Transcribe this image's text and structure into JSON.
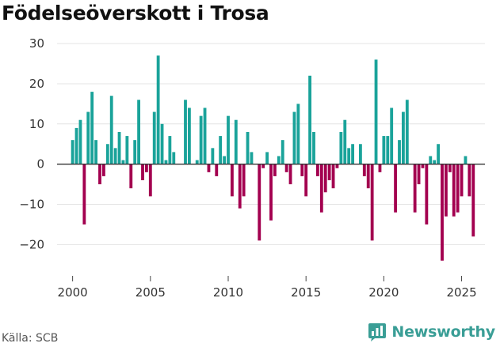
{
  "chart_data": {
    "type": "bar",
    "title": "Födelseöverskott i Trosa",
    "xlabel": "",
    "ylabel": "",
    "xlim": [
      1999,
      2026.5
    ],
    "ylim": [
      -27,
      31
    ],
    "yticks": [
      30,
      20,
      10,
      0,
      -10,
      -20
    ],
    "ytick_labels": [
      "30",
      "20",
      "10",
      "0",
      "−10",
      "−20"
    ],
    "xticks": [
      2000,
      2005,
      2010,
      2015,
      2020,
      2025
    ],
    "xtick_labels": [
      "2000",
      "2005",
      "2010",
      "2015",
      "2020",
      "2025"
    ],
    "grid": true,
    "positive_color": "#1aa39a",
    "negative_color": "#a3004f",
    "series": [
      {
        "name": "Födelseöverskott",
        "x": [
          2000.0,
          2000.25,
          2000.5,
          2000.75,
          2001.0,
          2001.25,
          2001.5,
          2001.75,
          2002.0,
          2002.25,
          2002.5,
          2002.75,
          2003.0,
          2003.25,
          2003.5,
          2003.75,
          2004.0,
          2004.25,
          2004.5,
          2004.75,
          2005.0,
          2005.25,
          2005.5,
          2005.75,
          2006.0,
          2006.25,
          2006.5,
          2006.75,
          2007.0,
          2007.25,
          2007.5,
          2007.75,
          2008.0,
          2008.25,
          2008.5,
          2008.75,
          2009.0,
          2009.25,
          2009.5,
          2009.75,
          2010.0,
          2010.25,
          2010.5,
          2010.75,
          2011.0,
          2011.25,
          2011.5,
          2011.75,
          2012.0,
          2012.25,
          2012.5,
          2012.75,
          2013.0,
          2013.25,
          2013.5,
          2013.75,
          2014.0,
          2014.25,
          2014.5,
          2014.75,
          2015.0,
          2015.25,
          2015.5,
          2015.75,
          2016.0,
          2016.25,
          2016.5,
          2016.75,
          2017.0,
          2017.25,
          2017.5,
          2017.75,
          2018.0,
          2018.25,
          2018.5,
          2018.75,
          2019.0,
          2019.25,
          2019.5,
          2019.75,
          2020.0,
          2020.25,
          2020.5,
          2020.75,
          2021.0,
          2021.25,
          2021.5,
          2021.75,
          2022.0,
          2022.25,
          2022.5,
          2022.75,
          2023.0,
          2023.25,
          2023.5,
          2023.75,
          2024.0,
          2024.25,
          2024.5,
          2024.75,
          2025.0,
          2025.25,
          2025.5,
          2025.75
        ],
        "values": [
          6,
          9,
          11,
          -15,
          13,
          18,
          6,
          -5,
          -3,
          5,
          17,
          4,
          8,
          1,
          7,
          -6,
          6,
          16,
          -4,
          -2,
          -8,
          13,
          27,
          10,
          1,
          7,
          3,
          0,
          0,
          16,
          14,
          0,
          1,
          12,
          14,
          -2,
          4,
          -3,
          7,
          2,
          12,
          -8,
          11,
          -11,
          -8,
          8,
          3,
          0,
          -19,
          -1,
          3,
          -14,
          -3,
          2,
          6,
          -2,
          -5,
          13,
          15,
          -3,
          -8,
          22,
          8,
          -3,
          -12,
          -7,
          -4,
          -6,
          -1,
          8,
          11,
          4,
          5,
          0,
          5,
          -3,
          -6,
          -19,
          26,
          -2,
          7,
          7,
          14,
          -12,
          6,
          13,
          16,
          0,
          -12,
          -5,
          -1,
          -15,
          2,
          1,
          5,
          -24,
          -13,
          -2,
          -13,
          -12,
          -8,
          2,
          -8,
          -18
        ]
      }
    ]
  },
  "footer": {
    "source": "Källa: SCB",
    "brand": "Newsworthy"
  }
}
